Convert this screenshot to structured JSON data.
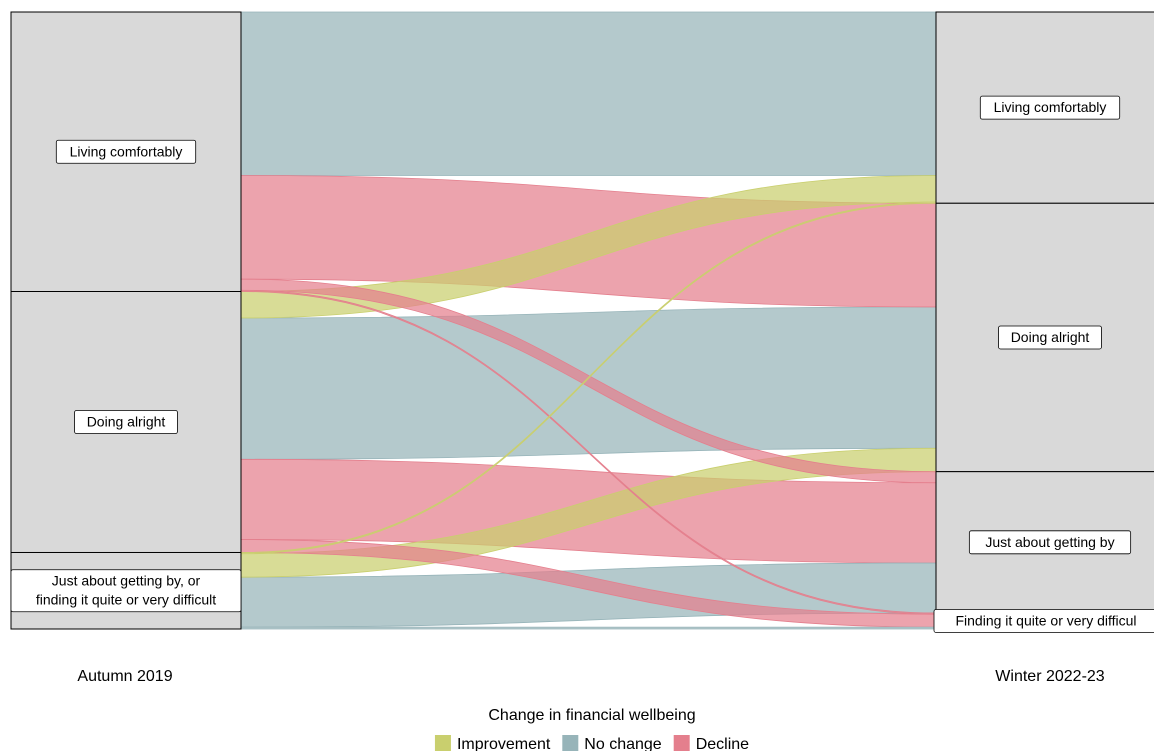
{
  "chart_data": {
    "type": "alluvial",
    "axes": [
      {
        "label": "Autumn 2019",
        "strata": [
          {
            "label": "Living comfortably",
            "lines": [
              "Living comfortably"
            ]
          },
          {
            "label": "Doing alright",
            "lines": [
              "Doing alright"
            ]
          },
          {
            "label": "Just about getting by, or finding it quite or very difficult",
            "lines": [
              "Just about getting by, or",
              "finding it quite or very difficult"
            ]
          }
        ]
      },
      {
        "label": "Winter 2022-23",
        "strata": [
          {
            "label": "Living comfortably",
            "lines": [
              "Living comfortably"
            ]
          },
          {
            "label": "Doing alright",
            "lines": [
              "Doing alright"
            ]
          },
          {
            "label": "Just about getting by",
            "lines": [
              "Just about getting by"
            ]
          },
          {
            "label": "Finding it quite or very difficult",
            "lines": [
              "Finding it quite or very difficul"
            ]
          }
        ]
      }
    ],
    "flows": [
      {
        "from": 0,
        "to": 0,
        "value": 26.5,
        "change": "No change"
      },
      {
        "from": 0,
        "to": 1,
        "value": 16.8,
        "change": "Decline"
      },
      {
        "from": 0,
        "to": 2,
        "value": 1.8,
        "change": "Decline"
      },
      {
        "from": 0,
        "to": 3,
        "value": 0.2,
        "change": "Decline"
      },
      {
        "from": 1,
        "to": 0,
        "value": 4.3,
        "change": "Improvement"
      },
      {
        "from": 1,
        "to": 1,
        "value": 22.9,
        "change": "No change"
      },
      {
        "from": 1,
        "to": 2,
        "value": 13.0,
        "change": "Decline"
      },
      {
        "from": 1,
        "to": 3,
        "value": 2.1,
        "change": "Decline"
      },
      {
        "from": 2,
        "to": 0,
        "value": 0.2,
        "change": "Improvement"
      },
      {
        "from": 2,
        "to": 1,
        "value": 3.8,
        "change": "Improvement"
      },
      {
        "from": 2,
        "to": 2,
        "value": 8.1,
        "change": "No change"
      },
      {
        "from": 2,
        "to": 3,
        "value": 0.3,
        "change": "No change"
      }
    ],
    "legend": {
      "title": "Change in financial wellbeing",
      "position": "bottom",
      "items": [
        {
          "name": "Improvement",
          "color": "#c9cf6e"
        },
        {
          "name": "No change",
          "color": "#97b4b9"
        },
        {
          "name": "Decline",
          "color": "#e47f8d"
        }
      ]
    },
    "colors": {
      "Improvement": "#c9cf6e",
      "No change": "#97b4b9",
      "Decline": "#e47f8d",
      "stratum": "#d9d9d9"
    }
  }
}
